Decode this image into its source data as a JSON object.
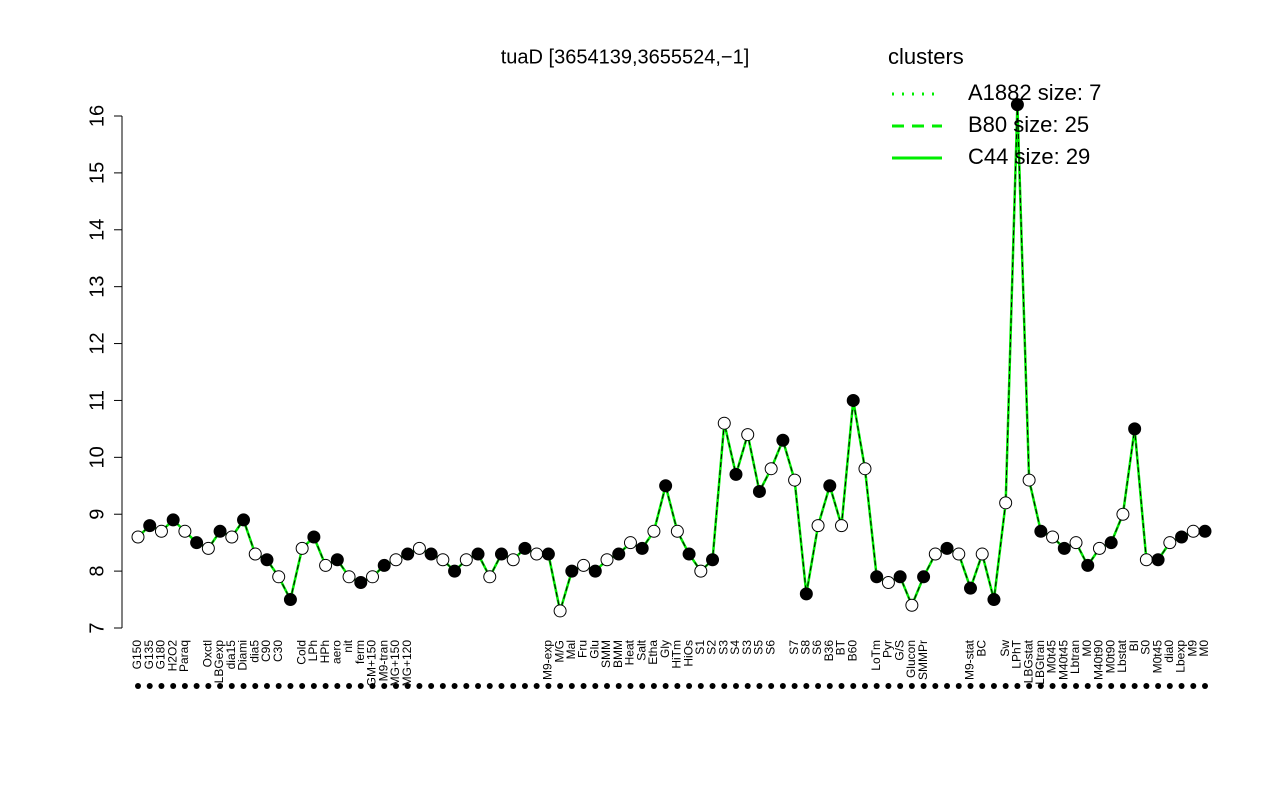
{
  "chart_data": {
    "type": "line",
    "title": "tuaD [3654139,3655524,−1]",
    "categories": [
      "G150",
      "G135",
      "G180",
      "H2O2",
      "Paraq",
      null,
      "Oxctl",
      "LBGexp",
      "dia15",
      "Diami",
      "dia5",
      "C90",
      "C30",
      null,
      "Cold",
      "LPh",
      "HPh",
      "aero",
      "nit",
      "ferm",
      "GM+150",
      "M9-tran",
      "MG+150",
      "MG+120",
      null,
      null,
      null,
      null,
      null,
      null,
      null,
      null,
      null,
      null,
      null,
      "M9-exp",
      "M/G",
      "Mal",
      "Fru",
      "Glu",
      "SMM",
      "BMM",
      "Heat",
      "Salt",
      "Etha",
      "Gly",
      "HiTm",
      "HiOs",
      "S1",
      "S2",
      "S3",
      "S4",
      "S3",
      "S5",
      "S6",
      null,
      "S7",
      "S8",
      "S6",
      "B36",
      "BT",
      "B60",
      null,
      "LoTm",
      "Pyr",
      "G/S",
      "Glucon",
      "SMMPr",
      null,
      null,
      null,
      "M9-stat",
      "BC",
      null,
      "Sw",
      "LPhT",
      "LBGstat",
      "LBGtran",
      "M0t45",
      "M40t45",
      "Lbtran",
      "M0",
      "M40t90",
      "M0t90",
      "Lbstat",
      "BI",
      "S0",
      "M0t45",
      "dia0",
      "Lbexp",
      "M9",
      "M0"
    ],
    "values": [
      8.6,
      8.8,
      8.7,
      8.9,
      8.7,
      8.5,
      8.4,
      8.7,
      8.6,
      8.9,
      8.3,
      8.2,
      7.9,
      7.5,
      8.4,
      8.6,
      8.1,
      8.2,
      7.9,
      7.8,
      7.9,
      8.1,
      8.2,
      8.3,
      8.4,
      8.3,
      8.2,
      8.0,
      8.2,
      8.3,
      7.9,
      8.3,
      8.2,
      8.4,
      8.3,
      8.3,
      7.3,
      8.0,
      8.1,
      8.0,
      8.2,
      8.3,
      8.5,
      8.4,
      8.7,
      9.5,
      8.7,
      8.3,
      8.0,
      8.2,
      10.6,
      9.7,
      10.4,
      9.4,
      9.8,
      10.3,
      9.6,
      7.6,
      8.8,
      9.5,
      8.8,
      11.0,
      9.8,
      7.9,
      7.8,
      7.9,
      7.4,
      7.9,
      8.3,
      8.4,
      8.3,
      7.7,
      8.3,
      7.5,
      9.2,
      16.2,
      9.6,
      8.7,
      8.6,
      8.4,
      8.5,
      8.1,
      8.4,
      8.5,
      9.0,
      10.5,
      8.2,
      8.2,
      8.5,
      8.6,
      8.7,
      8.7
    ],
    "ylim": [
      7,
      16
    ],
    "yticks": [
      7,
      8,
      9,
      10,
      11,
      12,
      13,
      14,
      15,
      16
    ],
    "line_color": "#00ee00",
    "point_color": "#000000",
    "legend_title": "clusters",
    "legend": [
      "A1882 size: 7",
      "B80 size: 25",
      "C44 size: 29"
    ]
  }
}
